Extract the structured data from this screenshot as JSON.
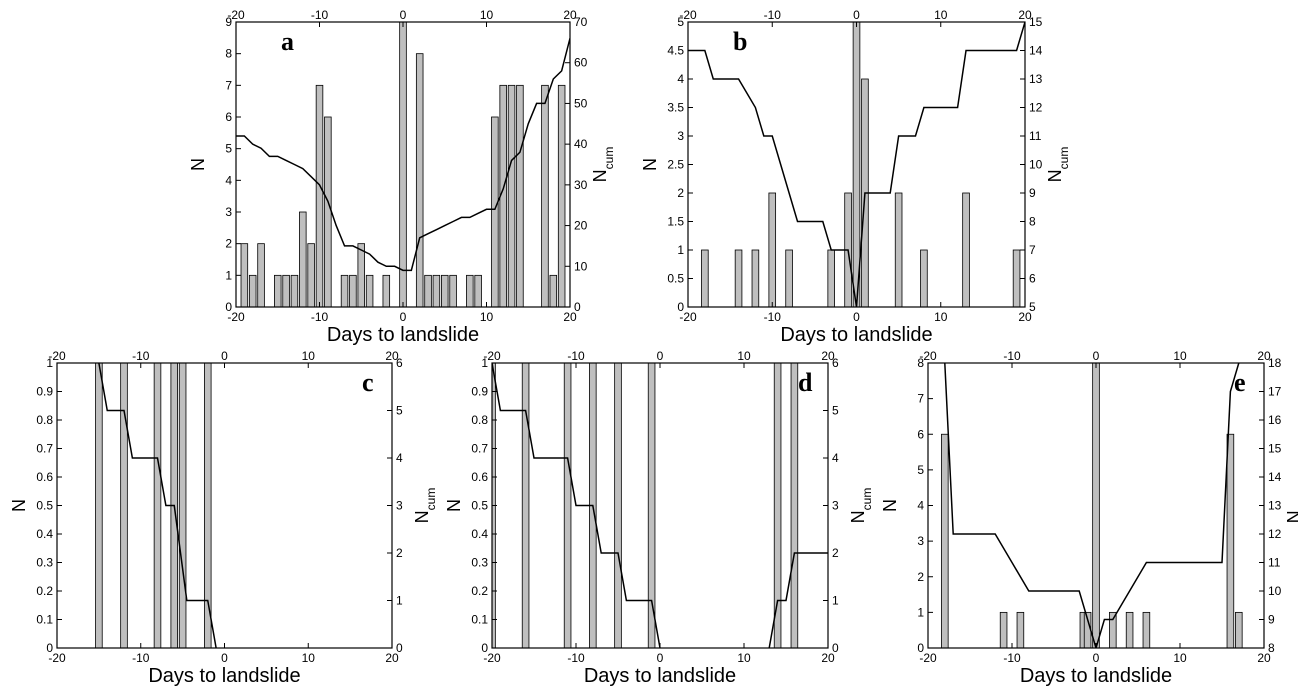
{
  "chart_data": [
    {
      "type": "bar",
      "panel_label": "a",
      "xlabel": "Days to landslide",
      "ylabel": "N",
      "y2label": "N",
      "y2label_subscript": "cum",
      "xlim": [
        -20,
        20
      ],
      "xticks": [
        -20,
        -10,
        0,
        10,
        20
      ],
      "ylim": [
        0,
        9
      ],
      "yticks": [
        0,
        1,
        2,
        3,
        4,
        5,
        6,
        7,
        8,
        9
      ],
      "y2lim": [
        0,
        70
      ],
      "y2ticks": [
        0,
        10,
        20,
        30,
        40,
        50,
        60,
        70
      ],
      "bar_color": "#bfbfbf",
      "line_color": "#000000",
      "bars": {
        "x": [
          -19,
          -18,
          -17,
          -15,
          -14,
          -13,
          -12,
          -11,
          -10,
          -9,
          -7,
          -6,
          -5,
          -4,
          -2,
          0,
          2,
          3,
          4,
          5,
          6,
          8,
          9,
          11,
          12,
          13,
          14,
          17,
          18,
          19
        ],
        "values": [
          2,
          1,
          2,
          1,
          1,
          1,
          3,
          2,
          7,
          6,
          1,
          1,
          2,
          1,
          1,
          9,
          8,
          1,
          1,
          1,
          1,
          1,
          1,
          6,
          7,
          7,
          7,
          7,
          1,
          7
        ]
      },
      "line": {
        "axis": "y2",
        "x": [
          -20,
          -19,
          -18,
          -17,
          -16,
          -15,
          -14,
          -13,
          -12,
          -11,
          -10,
          -9,
          -8,
          -7,
          -6,
          -5,
          -4,
          -3,
          -2,
          -1,
          0,
          1,
          2,
          3,
          4,
          5,
          6,
          7,
          8,
          9,
          10,
          11,
          12,
          13,
          14,
          15,
          16,
          17,
          18,
          19,
          20
        ],
        "values": [
          42,
          42,
          40,
          39,
          37,
          37,
          36,
          35,
          34,
          32,
          30,
          26,
          20,
          15,
          15,
          14,
          13,
          11,
          10,
          10,
          9,
          9,
          17,
          18,
          19,
          20,
          21,
          22,
          22,
          23,
          24,
          24,
          29,
          36,
          38,
          45,
          50,
          50,
          56,
          58,
          66
        ]
      }
    },
    {
      "type": "bar",
      "panel_label": "b",
      "xlabel": "Days to landslide",
      "ylabel": "N",
      "y2label": "N",
      "y2label_subscript": "cum",
      "xlim": [
        -20,
        20
      ],
      "xticks": [
        -20,
        -10,
        0,
        10,
        20
      ],
      "ylim": [
        0,
        5
      ],
      "yticks": [
        0,
        0.5,
        1,
        1.5,
        2,
        2.5,
        3,
        3.5,
        4,
        4.5,
        5
      ],
      "y2lim": [
        5,
        15
      ],
      "y2ticks": [
        5,
        6,
        7,
        8,
        9,
        10,
        11,
        12,
        13,
        14,
        15
      ],
      "bar_color": "#bfbfbf",
      "line_color": "#000000",
      "bars": {
        "x": [
          -18,
          -14,
          -12,
          -10,
          -8,
          -3,
          -1,
          0,
          1,
          5,
          8,
          13,
          19
        ],
        "values": [
          1,
          1,
          1,
          2,
          1,
          1,
          2,
          5,
          4,
          2,
          1,
          2,
          1
        ]
      },
      "line": {
        "axis": "y2",
        "x": [
          -20,
          -18,
          -17,
          -14,
          -13,
          -12,
          -11,
          -10,
          -9,
          -8,
          -7,
          -4,
          -3,
          -1,
          0,
          1,
          4,
          5,
          7,
          8,
          12,
          13,
          19,
          20
        ],
        "values": [
          14,
          14,
          13,
          13,
          12.5,
          12,
          11,
          11,
          10,
          9,
          8,
          8,
          7,
          7,
          5,
          9,
          9,
          11,
          11,
          12,
          12,
          14,
          14,
          15
        ]
      }
    },
    {
      "type": "bar",
      "panel_label": "c",
      "xlabel": "Days to landslide",
      "ylabel": "N",
      "y2label": "N",
      "y2label_subscript": "cum",
      "xlim": [
        -20,
        20
      ],
      "xticks": [
        -20,
        -10,
        0,
        10,
        20
      ],
      "ylim": [
        0,
        1
      ],
      "yticks": [
        0,
        0.1,
        0.2,
        0.3,
        0.4,
        0.5,
        0.6,
        0.7,
        0.8,
        0.9,
        1
      ],
      "y2lim": [
        0,
        6
      ],
      "y2ticks": [
        0,
        1,
        2,
        3,
        4,
        5,
        6
      ],
      "bar_color": "#bfbfbf",
      "line_color": "#000000",
      "bars": {
        "x": [
          -15,
          -12,
          -8,
          -6,
          -5,
          -2
        ],
        "values": [
          1,
          1,
          1,
          1,
          1,
          1
        ]
      },
      "line": {
        "axis": "y2",
        "x": [
          -15,
          -14,
          -12,
          -11,
          -8,
          -7,
          -6,
          -4.5,
          -2,
          -1
        ],
        "values": [
          6,
          5,
          5,
          4,
          4,
          3,
          3,
          1,
          1,
          0
        ]
      }
    },
    {
      "type": "bar",
      "panel_label": "d",
      "xlabel": "Days to landslide",
      "ylabel": "N",
      "y2label": "N",
      "y2label_subscript": "cum",
      "xlim": [
        -20,
        20
      ],
      "xticks": [
        -20,
        -10,
        0,
        10,
        20
      ],
      "ylim": [
        0,
        1
      ],
      "yticks": [
        0,
        0.1,
        0.2,
        0.3,
        0.4,
        0.5,
        0.6,
        0.7,
        0.8,
        0.9,
        1
      ],
      "y2lim": [
        0,
        6
      ],
      "y2ticks": [
        0,
        1,
        2,
        3,
        4,
        5,
        6
      ],
      "bar_color": "#bfbfbf",
      "line_color": "#000000",
      "bars": {
        "x": [
          -20,
          -16,
          -11,
          -8,
          -5,
          -1,
          14,
          16
        ],
        "values": [
          1,
          1,
          1,
          1,
          1,
          1,
          1,
          1
        ]
      },
      "line": {
        "axis": "y2",
        "x": [
          -20,
          -19,
          -16,
          -15,
          -11,
          -10,
          -8,
          -7,
          -5,
          -4,
          -1,
          0,
          6,
          13,
          14,
          15,
          16,
          20
        ],
        "values": [
          6,
          5,
          5,
          4,
          4,
          3,
          3,
          2,
          2,
          1,
          1,
          0,
          null,
          0,
          1,
          1,
          2,
          2
        ]
      }
    },
    {
      "type": "bar",
      "panel_label": "e",
      "xlabel": "Days to landslide",
      "ylabel": "N",
      "y2label": "N",
      "y2label_subscript": "cum",
      "xlim": [
        -20,
        20
      ],
      "xticks": [
        -20,
        -10,
        0,
        10,
        20
      ],
      "ylim": [
        0,
        8
      ],
      "yticks": [
        0,
        1,
        2,
        3,
        4,
        5,
        6,
        7,
        8
      ],
      "y2lim": [
        8,
        18
      ],
      "y2ticks": [
        8,
        9,
        10,
        11,
        12,
        13,
        14,
        15,
        16,
        17,
        18
      ],
      "bar_color": "#bfbfbf",
      "line_color": "#000000",
      "bars": {
        "x": [
          -18,
          -11,
          -9,
          -1.5,
          -1,
          0,
          2,
          4,
          6,
          16,
          17
        ],
        "values": [
          6,
          1,
          1,
          1,
          1,
          8,
          1,
          1,
          1,
          6,
          1
        ]
      },
      "line": {
        "axis": "y2",
        "x": [
          -18,
          -17,
          -12,
          -11,
          -10,
          -8,
          -2,
          -1,
          0,
          1,
          2,
          3,
          4,
          5,
          6,
          15,
          16,
          17
        ],
        "values": [
          18,
          12,
          12,
          11.5,
          11,
          10,
          10,
          9,
          8,
          9,
          9,
          9.5,
          10,
          10.5,
          11,
          11,
          17,
          18
        ]
      }
    }
  ]
}
